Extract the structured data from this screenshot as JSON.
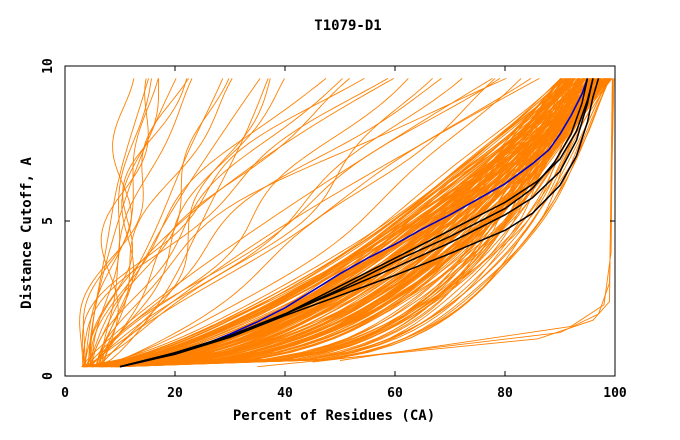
{
  "chart_data": {
    "type": "line",
    "title": "T1079-D1",
    "xlabel": "Percent of Residues (CA)",
    "ylabel": "Distance Cutoff, A",
    "xlim": [
      0,
      100
    ],
    "ylim": [
      0,
      10
    ],
    "x_ticks": [
      0,
      20,
      40,
      60,
      80,
      100
    ],
    "y_ticks": [
      0,
      5,
      10
    ],
    "grid": false,
    "legend": "none",
    "colors": {
      "models": "#ff8000",
      "highlight_blue": "#0000cc",
      "highlight_black": "#000000"
    },
    "series": [
      {
        "color": "#0000cc",
        "x": [
          10,
          15,
          20,
          25,
          30,
          35,
          40,
          45,
          50,
          55,
          60,
          65,
          70,
          75,
          80,
          85,
          88,
          90,
          92,
          94,
          95
        ],
        "y": [
          0.3,
          0.5,
          0.75,
          1.0,
          1.35,
          1.75,
          2.2,
          2.75,
          3.3,
          3.8,
          4.25,
          4.75,
          5.2,
          5.7,
          6.2,
          6.85,
          7.3,
          7.8,
          8.4,
          9.1,
          9.6
        ]
      },
      {
        "color": "#000000",
        "x": [
          10,
          20,
          30,
          40,
          50,
          60,
          70,
          80,
          85,
          90,
          93,
          95,
          96
        ],
        "y": [
          0.3,
          0.75,
          1.3,
          2.0,
          2.75,
          3.5,
          4.3,
          5.2,
          5.75,
          6.6,
          7.6,
          8.8,
          9.6
        ]
      },
      {
        "color": "#000000",
        "x": [
          10,
          20,
          30,
          40,
          50,
          60,
          70,
          80,
          85,
          89,
          92,
          94,
          95
        ],
        "y": [
          0.3,
          0.75,
          1.3,
          2.0,
          2.8,
          3.7,
          4.5,
          5.4,
          6.05,
          6.9,
          7.8,
          8.8,
          9.6
        ]
      },
      {
        "color": "#000000",
        "x": [
          10,
          20,
          30,
          40,
          50,
          60,
          70,
          80,
          85,
          90,
          93,
          95,
          96,
          97
        ],
        "y": [
          0.3,
          0.7,
          1.25,
          1.95,
          2.6,
          3.25,
          3.95,
          4.7,
          5.25,
          6.15,
          7.1,
          8.2,
          9.0,
          9.6
        ]
      },
      {
        "color": "#000000",
        "x": [
          10,
          20,
          30,
          40,
          50,
          60,
          70,
          80,
          86,
          90,
          93,
          95,
          96
        ],
        "y": [
          0.3,
          0.75,
          1.3,
          2.0,
          2.9,
          3.8,
          4.7,
          5.6,
          6.3,
          7.0,
          7.9,
          8.9,
          9.6
        ]
      }
    ],
    "annotations": []
  }
}
